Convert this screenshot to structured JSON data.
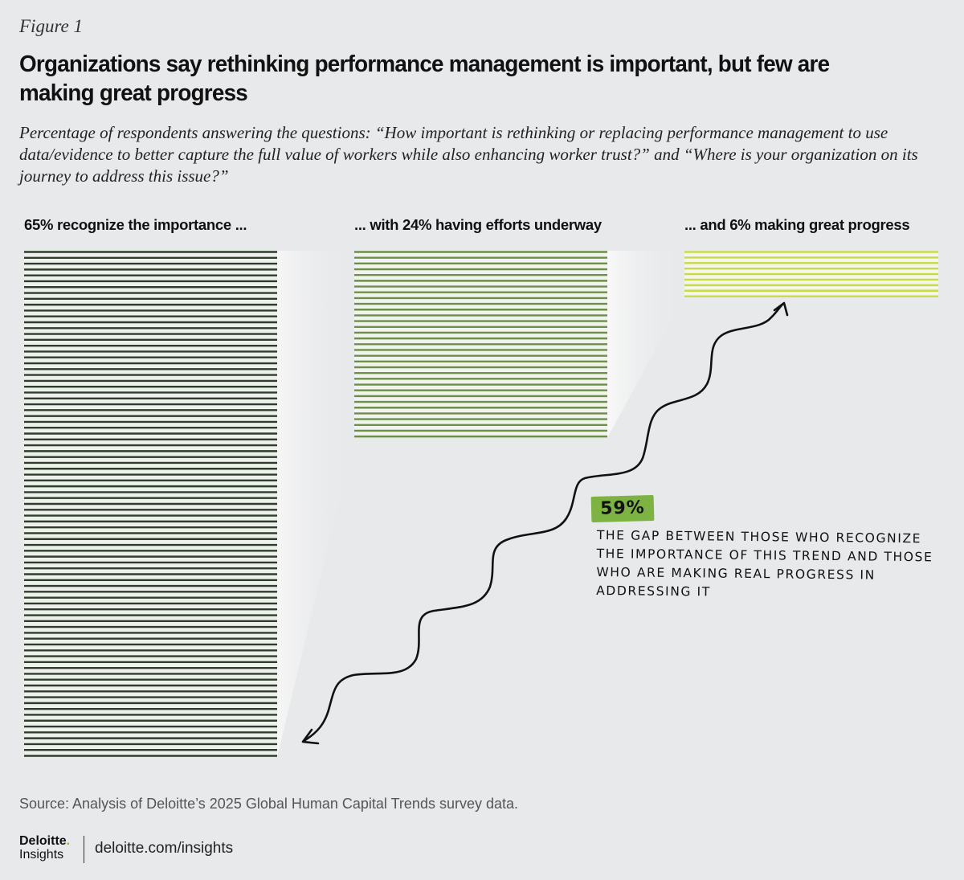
{
  "figure_label": "Figure 1",
  "title": "Organizations say rethinking performance management is important, but few are making great progress",
  "subtitle": "Percentage of respondents answering the questions: “How important is rethinking or replacing performance management to use data/evidence to better capture the full value of workers while also enhancing worker trust?” and “Where is your organization on its journey to address this issue?”",
  "chart_data": {
    "type": "bar",
    "categories": [
      "65% recognize the importance ...",
      "... with 24% having efforts underway",
      "... and 6% making great progress"
    ],
    "values": [
      65,
      24,
      6
    ],
    "colors": [
      "#2f3e2a",
      "#6e8f4a",
      "#c8d94a"
    ],
    "ylim": [
      0,
      65
    ],
    "annotation": {
      "value_label": "59%",
      "text": "THE GAP BETWEEN THOSE WHO RECOGNIZE THE IMPORTANCE OF THIS TREND AND THOSE WHO ARE MAKING REAL PROGRESS IN ADDRESSING IT",
      "badge_color": "#7cb342"
    }
  },
  "source": "Source: Analysis of Deloitte’s 2025 Global Human Capital Trends survey data.",
  "brand": {
    "name": "Deloitte",
    "sub": "Insights",
    "url": "deloitte.com/insights",
    "accent": "#86bc25"
  }
}
